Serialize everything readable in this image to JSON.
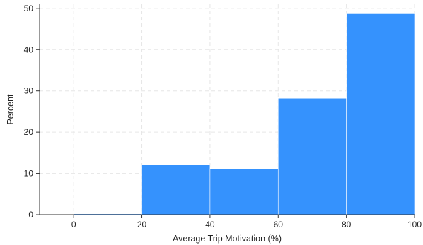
{
  "chart_data": {
    "type": "bar",
    "title": "",
    "xlabel": "Average Trip Motivation (%)",
    "ylabel": "Percent",
    "xlim": [
      -10,
      100
    ],
    "ylim": [
      0,
      51
    ],
    "x_ticks": [
      0,
      20,
      40,
      60,
      80,
      100
    ],
    "y_ticks": [
      0,
      10,
      20,
      30,
      40,
      50
    ],
    "grid": true,
    "bins": [
      {
        "from": 0,
        "to": 20,
        "value": 0.2
      },
      {
        "from": 20,
        "to": 40,
        "value": 12.1
      },
      {
        "from": 40,
        "to": 60,
        "value": 11.1
      },
      {
        "from": 60,
        "to": 80,
        "value": 28.2
      },
      {
        "from": 80,
        "to": 100,
        "value": 48.7
      }
    ],
    "bar_color": "#3592fd"
  }
}
